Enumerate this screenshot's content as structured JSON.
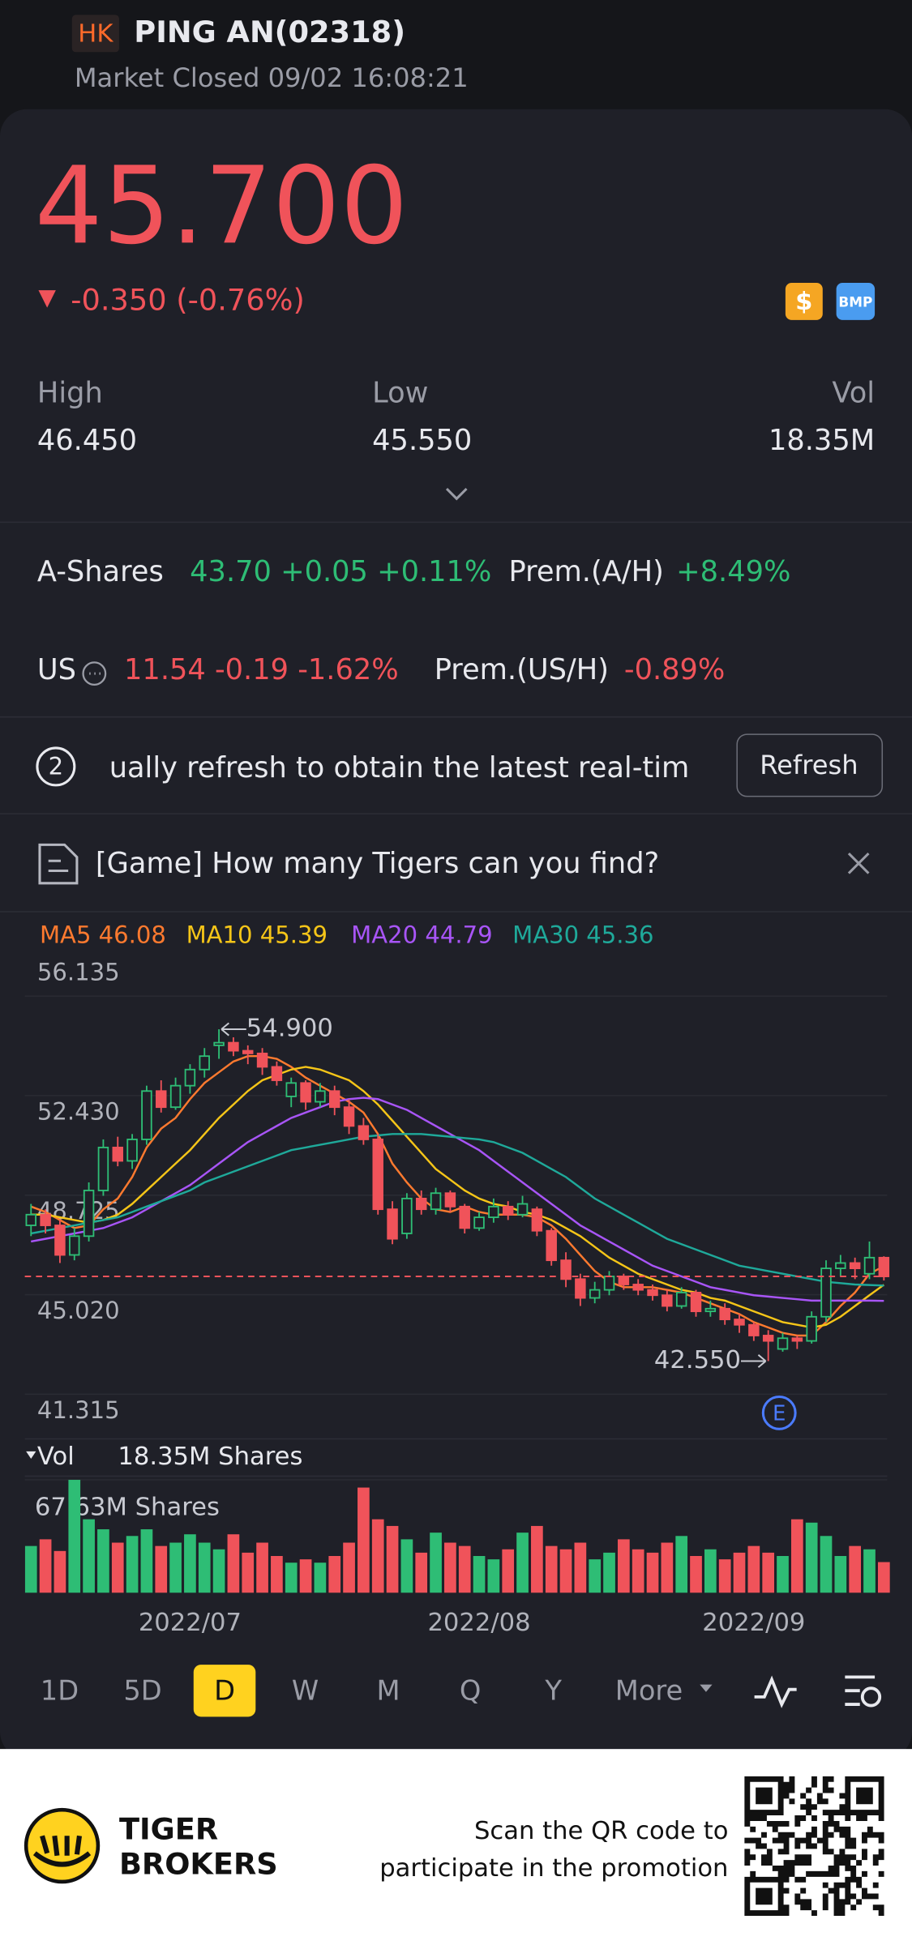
{
  "header": {
    "market": "HK",
    "name": "PING AN(02318)",
    "status": "Market Closed 09/02 16:08:21"
  },
  "quote": {
    "price": "45.700",
    "change": "-0.350 (-0.76%)",
    "badge_dollar": "$",
    "badge_bmp": "BMP"
  },
  "stats": [
    {
      "label": "High",
      "value": "46.450"
    },
    {
      "label": "Low",
      "value": "45.550"
    },
    {
      "label": "Vol",
      "value": "18.35M"
    }
  ],
  "ashares": {
    "label": "A-Shares",
    "quote": "43.70 +0.05 +0.11%",
    "prem_label": "Prem.(A/H)",
    "prem": "+8.49%"
  },
  "us": {
    "label": "US",
    "quote": "11.54 -0.19 -1.62%",
    "prem_label": "Prem.(US/H)",
    "prem": "-0.89%"
  },
  "notice": {
    "number": "2",
    "text": "ually refresh to obtain the latest real-tim",
    "button": "Refresh"
  },
  "banner": {
    "text": "[Game] How many Tigers can you find?"
  },
  "chart_data": {
    "type": "candlestick",
    "categories": [
      null,
      null,
      null,
      null,
      null,
      null,
      null,
      null,
      null,
      null,
      null,
      "2022/07",
      null,
      null,
      null,
      null,
      null,
      null,
      null,
      null,
      null,
      null,
      null,
      null,
      null,
      null,
      null,
      null,
      null,
      null,
      null,
      "2022/08",
      null,
      null,
      null,
      null,
      null,
      null,
      null,
      null,
      null,
      null,
      null,
      null,
      null,
      null,
      null,
      null,
      null,
      null,
      "2022/09",
      null,
      null,
      null,
      null,
      null,
      null,
      null,
      null,
      null
    ],
    "ohlc": [
      [
        47.6,
        48.4,
        47.2,
        48.0
      ],
      [
        48.0,
        48.2,
        47.3,
        47.6
      ],
      [
        47.6,
        47.8,
        46.2,
        46.5
      ],
      [
        46.5,
        47.5,
        46.3,
        47.2
      ],
      [
        47.2,
        49.2,
        47.0,
        48.9
      ],
      [
        48.9,
        50.8,
        48.7,
        50.5
      ],
      [
        50.5,
        50.9,
        49.8,
        50.0
      ],
      [
        50.0,
        51.0,
        49.7,
        50.8
      ],
      [
        50.8,
        52.8,
        50.6,
        52.6
      ],
      [
        52.6,
        53.0,
        51.8,
        52.0
      ],
      [
        52.0,
        53.1,
        51.9,
        52.8
      ],
      [
        52.8,
        53.6,
        52.5,
        53.4
      ],
      [
        53.4,
        54.2,
        53.1,
        53.9
      ],
      [
        54.3,
        54.9,
        53.8,
        54.4
      ],
      [
        54.4,
        54.6,
        53.9,
        54.1
      ],
      [
        54.1,
        54.3,
        53.6,
        54.0
      ],
      [
        54.0,
        54.2,
        53.2,
        53.5
      ],
      [
        53.5,
        53.7,
        52.8,
        53.0
      ],
      [
        52.4,
        53.1,
        52.0,
        52.9
      ],
      [
        52.9,
        53.0,
        51.9,
        52.2
      ],
      [
        52.2,
        52.9,
        52.0,
        52.6
      ],
      [
        52.6,
        52.8,
        51.7,
        52.0
      ],
      [
        52.0,
        52.3,
        51.0,
        51.3
      ],
      [
        51.3,
        51.6,
        50.6,
        50.8
      ],
      [
        50.8,
        51.0,
        48.0,
        48.2
      ],
      [
        48.2,
        48.5,
        46.9,
        47.1
      ],
      [
        47.3,
        48.8,
        47.1,
        48.6
      ],
      [
        48.6,
        48.9,
        48.0,
        48.2
      ],
      [
        48.2,
        49.0,
        48.0,
        48.8
      ],
      [
        48.8,
        48.9,
        48.1,
        48.3
      ],
      [
        48.3,
        48.4,
        47.3,
        47.5
      ],
      [
        47.5,
        48.1,
        47.4,
        47.9
      ],
      [
        47.9,
        48.6,
        47.7,
        48.3
      ],
      [
        48.3,
        48.5,
        47.8,
        48.0
      ],
      [
        48.0,
        48.7,
        47.9,
        48.4
      ],
      [
        48.2,
        48.3,
        47.2,
        47.4
      ],
      [
        47.4,
        47.5,
        46.1,
        46.3
      ],
      [
        46.3,
        46.6,
        45.3,
        45.6
      ],
      [
        45.6,
        45.8,
        44.6,
        44.9
      ],
      [
        44.9,
        45.5,
        44.7,
        45.2
      ],
      [
        45.2,
        45.9,
        45.0,
        45.7
      ],
      [
        45.7,
        45.8,
        45.2,
        45.4
      ],
      [
        45.4,
        45.6,
        45.0,
        45.2
      ],
      [
        45.2,
        45.4,
        44.8,
        45.0
      ],
      [
        45.0,
        45.2,
        44.4,
        44.6
      ],
      [
        44.6,
        45.3,
        44.5,
        45.1
      ],
      [
        45.1,
        45.2,
        44.2,
        44.4
      ],
      [
        44.4,
        44.8,
        44.2,
        44.5
      ],
      [
        44.5,
        44.7,
        43.9,
        44.1
      ],
      [
        44.1,
        44.3,
        43.6,
        43.9
      ],
      [
        43.9,
        44.0,
        43.3,
        43.5
      ],
      [
        43.5,
        43.7,
        42.55,
        43.3
      ],
      [
        43.0,
        43.6,
        42.9,
        43.4
      ],
      [
        43.4,
        43.5,
        43.0,
        43.3
      ],
      [
        43.3,
        44.4,
        43.2,
        44.2
      ],
      [
        44.2,
        46.3,
        44.0,
        46.0
      ],
      [
        46.0,
        46.5,
        45.7,
        46.2
      ],
      [
        46.2,
        46.4,
        45.6,
        46.0
      ],
      [
        45.8,
        47.0,
        45.6,
        46.4
      ],
      [
        46.4,
        46.45,
        45.55,
        45.7
      ]
    ],
    "series": [
      {
        "name": "MA5",
        "color": "#ff7a2f",
        "values": [
          48.3,
          48.1,
          47.8,
          47.5,
          47.6,
          48.2,
          48.6,
          49.4,
          50.5,
          51.2,
          51.6,
          52.3,
          52.9,
          53.3,
          53.7,
          53.9,
          53.9,
          53.8,
          53.5,
          53.1,
          52.8,
          52.5,
          52.2,
          51.8,
          51.0,
          49.9,
          49.2,
          48.6,
          48.2,
          48.1,
          48.3,
          48.1,
          48.0,
          48.0,
          48.0,
          47.9,
          47.6,
          47.1,
          46.5,
          45.9,
          45.5,
          45.3,
          45.3,
          45.3,
          45.2,
          45.1,
          44.9,
          44.7,
          44.5,
          44.3,
          44.0,
          43.8,
          43.6,
          43.5,
          43.5,
          44.0,
          44.6,
          45.1,
          45.8,
          46.08
        ]
      },
      {
        "name": "MA10",
        "color": "#f5c518",
        "values": [
          48.0,
          48.0,
          47.9,
          47.8,
          47.7,
          47.8,
          48.0,
          48.4,
          48.9,
          49.4,
          49.9,
          50.4,
          51.0,
          51.6,
          52.1,
          52.6,
          53.0,
          53.2,
          53.4,
          53.5,
          53.4,
          53.2,
          53.0,
          52.6,
          52.1,
          51.5,
          50.9,
          50.3,
          49.7,
          49.3,
          48.9,
          48.6,
          48.4,
          48.3,
          48.1,
          48.0,
          47.8,
          47.5,
          47.2,
          46.8,
          46.4,
          46.1,
          45.8,
          45.6,
          45.4,
          45.2,
          45.1,
          44.9,
          44.8,
          44.6,
          44.4,
          44.2,
          44.0,
          43.9,
          43.8,
          43.9,
          44.2,
          44.6,
          45.0,
          45.39
        ]
      },
      {
        "name": "MA20",
        "color": "#a855f7",
        "values": [
          47.0,
          47.1,
          47.2,
          47.3,
          47.4,
          47.5,
          47.7,
          47.9,
          48.2,
          48.5,
          48.8,
          49.1,
          49.5,
          49.9,
          50.3,
          50.7,
          51.0,
          51.3,
          51.6,
          51.8,
          52.0,
          52.2,
          52.3,
          52.35,
          52.3,
          52.1,
          51.9,
          51.6,
          51.3,
          51.0,
          50.7,
          50.4,
          50.0,
          49.6,
          49.2,
          48.8,
          48.4,
          48.0,
          47.6,
          47.3,
          47.0,
          46.7,
          46.4,
          46.1,
          45.9,
          45.7,
          45.5,
          45.3,
          45.2,
          45.1,
          45.0,
          44.95,
          44.9,
          44.85,
          44.8,
          44.8,
          44.8,
          44.8,
          44.8,
          44.79
        ]
      },
      {
        "name": "MA30",
        "color": "#1fa99a",
        "values": [
          47.3,
          47.4,
          47.5,
          47.6,
          47.7,
          47.8,
          47.9,
          48.1,
          48.3,
          48.5,
          48.7,
          48.9,
          49.2,
          49.4,
          49.6,
          49.8,
          50.0,
          50.2,
          50.4,
          50.5,
          50.6,
          50.7,
          50.8,
          50.9,
          50.95,
          51.0,
          51.0,
          51.0,
          50.95,
          50.9,
          50.85,
          50.8,
          50.7,
          50.5,
          50.3,
          50.0,
          49.7,
          49.4,
          49.0,
          48.6,
          48.3,
          48.0,
          47.7,
          47.4,
          47.1,
          46.9,
          46.7,
          46.5,
          46.3,
          46.1,
          46.0,
          45.9,
          45.8,
          45.7,
          45.6,
          45.5,
          45.45,
          45.4,
          45.38,
          45.36
        ]
      }
    ],
    "ylim": [
      41.315,
      56.135
    ],
    "yticks": [
      56.135,
      {
        "value": 52.43,
        "label": "52.430"
      },
      48.725,
      {
        "value": 45.02,
        "label": "45.020"
      },
      41.315
    ],
    "high": {
      "value": 54.9,
      "label": "54.900",
      "index": 13
    },
    "low": {
      "value": 42.55,
      "label": "42.550",
      "index": 51
    },
    "last_price": 45.7,
    "up_color": "#2ebd75",
    "down_color": "#f0535a",
    "event": "E",
    "volume": {
      "label": "Vol",
      "current_label": "18.35M Shares",
      "ylim": [
        0,
        67.63
      ],
      "yticks": [
        {
          "value": 67.63,
          "label": "67.63M Shares"
        }
      ],
      "values": [
        28,
        32,
        25,
        67.63,
        44,
        38,
        30,
        34,
        38,
        28,
        30,
        35,
        30,
        26,
        35,
        24,
        30,
        22,
        18,
        20,
        18,
        22,
        30,
        63,
        44,
        40,
        32,
        24,
        36,
        30,
        28,
        22,
        20,
        26,
        36,
        40,
        28,
        26,
        30,
        20,
        24,
        32,
        26,
        24,
        30,
        34,
        22,
        26,
        20,
        24,
        28,
        24,
        22,
        44,
        42,
        34,
        22,
        28,
        26,
        18.35
      ]
    }
  },
  "periods": {
    "items": [
      "1D",
      "5D",
      "D",
      "W",
      "M",
      "Q",
      "Y",
      "More"
    ],
    "active": 2
  },
  "footer": {
    "brand": [
      "TIGER",
      "BROKERS"
    ],
    "lines": [
      "Scan the QR code to",
      "participate in the promotion"
    ]
  }
}
